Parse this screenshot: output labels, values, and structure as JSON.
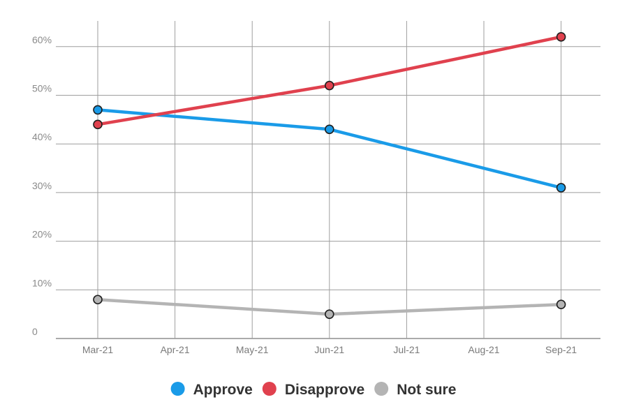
{
  "chart_data": {
    "type": "line",
    "x": [
      "Mar-21",
      "Apr-21",
      "May-21",
      "Jun-21",
      "Jul-21",
      "Aug-21",
      "Sep-21"
    ],
    "series": [
      {
        "name": "Approve",
        "color": "#1a9be8",
        "points": [
          [
            0,
            47
          ],
          [
            3,
            43
          ],
          [
            6,
            31
          ]
        ]
      },
      {
        "name": "Disapprove",
        "color": "#e0414e",
        "points": [
          [
            0,
            44
          ],
          [
            3,
            52
          ],
          [
            6,
            62
          ]
        ]
      },
      {
        "name": "Not sure",
        "color": "#b4b4b4",
        "points": [
          [
            0,
            8
          ],
          [
            3,
            5
          ],
          [
            6,
            7
          ]
        ]
      }
    ],
    "yticks": [
      "0",
      "10%",
      "20%",
      "30%",
      "40%",
      "50%",
      "60%"
    ],
    "ylim": [
      0,
      65
    ],
    "grid": true,
    "legend_position": "bottom-center"
  }
}
